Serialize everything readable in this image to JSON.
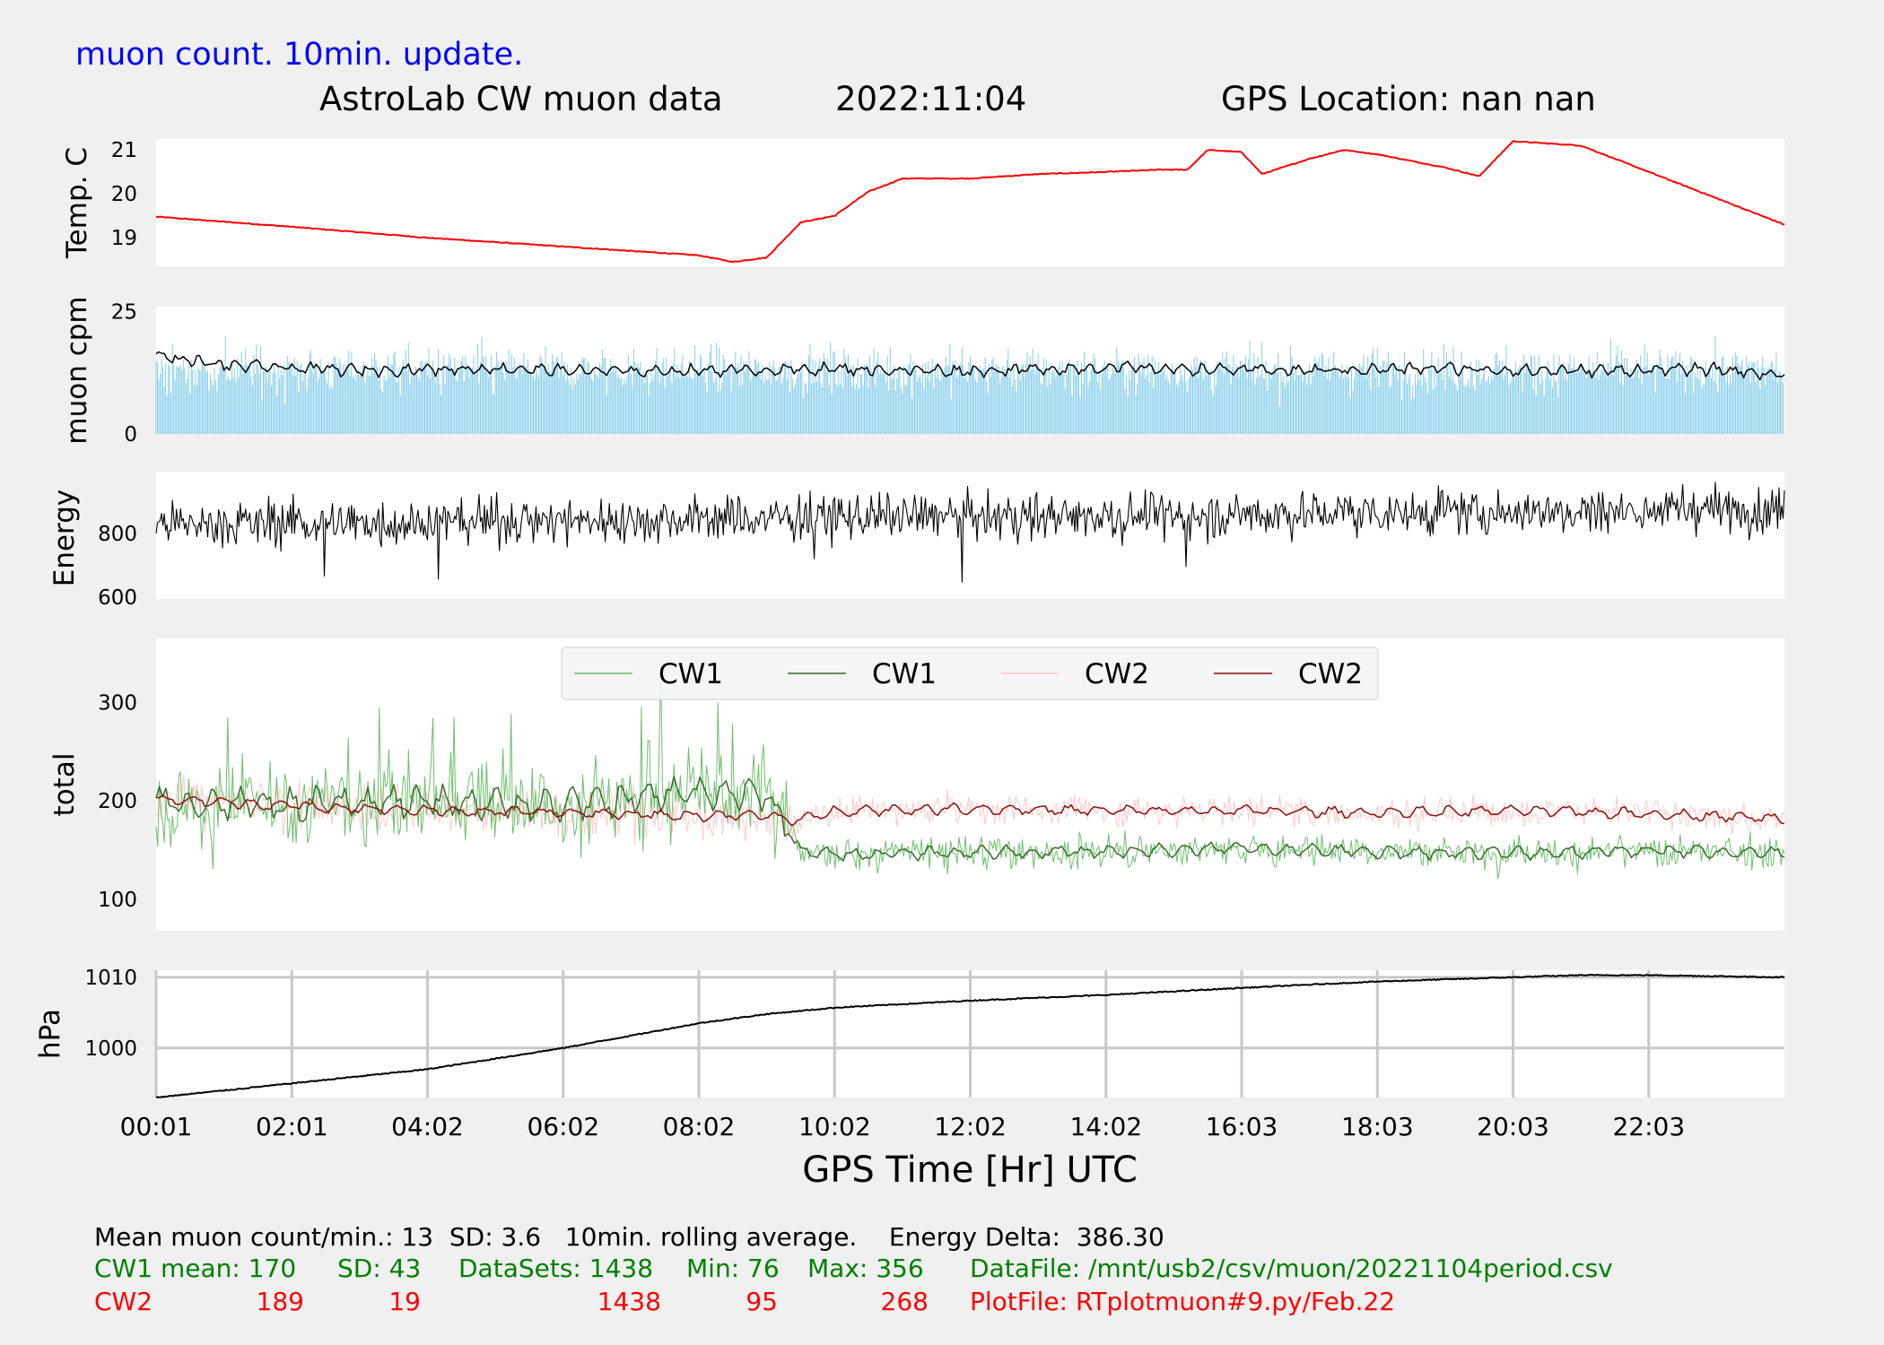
{
  "header": {
    "subtitle": "muon count.  10min. update.",
    "title": "AstroLab CW muon data",
    "date": "2022:11:04",
    "gps": "GPS Location: nan   nan",
    "subtitle_color": "#0000ff"
  },
  "footer": {
    "line1": "Mean muon count/min.: 13  SD: 3.6   10min. rolling average.    Energy Delta:  386.30",
    "cw1": {
      "label": "CW1 mean: 170",
      "sd": "SD: 43",
      "datasets": "DataSets: 1438",
      "min": "Min: 76",
      "max": "Max: 356",
      "file": "DataFile: /mnt/usb2/csv/muon/20221104period.csv",
      "color": "#008000"
    },
    "cw2": {
      "label": "CW2",
      "mean": "189",
      "sd": "19",
      "datasets": "1438",
      "min": "95",
      "max": "268",
      "file": "PlotFile: RTplotmuon#9.py/Feb.22",
      "color": "#ff0000"
    }
  },
  "colors": {
    "temp": "#ff0000",
    "cpm_bars": "#87ceeb",
    "cpm_avg": "#000000",
    "energy": "#000000",
    "cw1_raw": "#6bbf6b",
    "cw1_avg": "#3a6b2a",
    "cw2_raw": "#ffc8c8",
    "cw2_avg": "#8b1010",
    "pressure": "#000000",
    "grid": "#c8c8c8"
  },
  "chart_data": [
    {
      "type": "line",
      "ylabel": "Temp. C",
      "yticks": [
        19,
        20,
        21
      ],
      "ylim": [
        18.35,
        21.25
      ],
      "x": [
        0,
        2,
        4,
        6,
        8,
        8.5,
        9,
        9.5,
        10,
        10.5,
        11,
        12,
        13,
        14,
        14.8,
        15.2,
        15.5,
        16,
        16.3,
        17,
        17.5,
        18,
        19,
        19.5,
        20,
        21,
        22,
        23,
        24
      ],
      "series": [
        {
          "values": [
            19.48,
            19.25,
            19.0,
            18.8,
            18.6,
            18.45,
            18.55,
            19.35,
            19.5,
            20.05,
            20.35,
            20.35,
            20.45,
            20.5,
            20.55,
            20.55,
            21.0,
            20.95,
            20.45,
            20.8,
            21.0,
            20.9,
            20.6,
            20.4,
            21.2,
            21.1,
            20.5,
            19.9,
            19.3
          ]
        }
      ]
    },
    {
      "type": "bar",
      "ylabel": "muon cpm",
      "yticks": [
        0,
        25
      ],
      "ylim": [
        0,
        26
      ],
      "x_range": [
        0,
        24
      ],
      "mean": 13,
      "sd": 3.6,
      "series": [
        {
          "values": []
        },
        {
          "values": [
            16,
            14,
            13.5,
            13,
            13.2,
            13.4,
            13,
            12.8,
            13,
            13.1,
            13.3,
            13,
            12.9,
            13.2,
            13.6,
            13.3,
            13.1,
            13,
            13.2,
            13.4,
            13,
            12.9,
            13.1,
            13.2,
            12
          ]
        }
      ]
    },
    {
      "type": "line",
      "ylabel": "Energy",
      "yticks": [
        600,
        800
      ],
      "ylim": [
        595,
        995
      ],
      "x_range": [
        0,
        24
      ],
      "mean": 830,
      "amplitude": 60
    },
    {
      "type": "line",
      "ylabel": "total",
      "yticks": [
        100,
        200,
        300
      ],
      "ylim": [
        68,
        365
      ],
      "x_range": [
        0,
        24
      ],
      "legend": [
        "CW1",
        "CW1",
        "CW2",
        "CW2"
      ],
      "legend_loc": "upper center",
      "series": [
        {
          "name": "CW1",
          "values": []
        },
        {
          "name": "CW1",
          "x": [
            0,
            2,
            4,
            6,
            8,
            9,
            9.5,
            10,
            12,
            14,
            16,
            18,
            20,
            22,
            24
          ],
          "values": [
            200,
            195,
            200,
            195,
            210,
            205,
            150,
            145,
            148,
            148,
            152,
            148,
            147,
            150,
            146
          ]
        },
        {
          "name": "CW2",
          "values": []
        },
        {
          "name": "CW2",
          "x": [
            0,
            2,
            4,
            6,
            8,
            9,
            9.5,
            10,
            12,
            14,
            16,
            18,
            20,
            22,
            24
          ],
          "values": [
            202,
            195,
            190,
            188,
            185,
            185,
            180,
            190,
            192,
            190,
            190,
            188,
            190,
            187,
            182
          ]
        }
      ]
    },
    {
      "type": "line",
      "ylabel": "hPa",
      "xlabel": "GPS Time  [Hr] UTC",
      "yticks": [
        1000,
        1010
      ],
      "ylim": [
        993,
        1011
      ],
      "xticks": [
        "00:01",
        "02:01",
        "04:02",
        "06:02",
        "08:02",
        "10:02",
        "12:02",
        "14:02",
        "16:03",
        "18:03",
        "20:03",
        "22:03"
      ],
      "x": [
        0,
        2,
        4,
        6,
        8,
        9,
        10,
        12,
        14,
        16,
        18,
        20,
        21,
        22,
        24
      ],
      "series": [
        {
          "values": [
            993,
            995,
            997,
            1000,
            1003.5,
            1004.8,
            1005.7,
            1006.7,
            1007.5,
            1008.5,
            1009.4,
            1010,
            1010.3,
            1010.3,
            1010
          ]
        }
      ]
    }
  ]
}
